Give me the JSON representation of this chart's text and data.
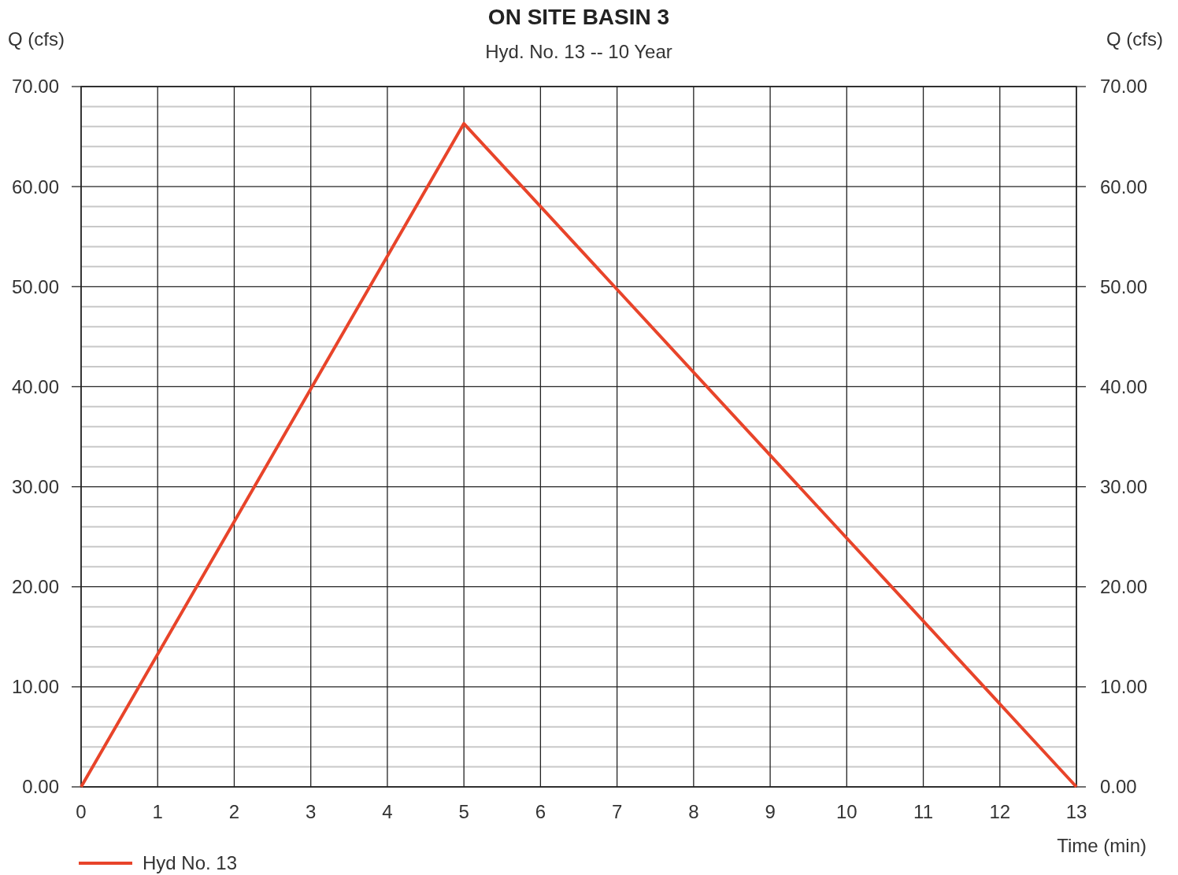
{
  "chart_data": {
    "type": "line",
    "title": "ON SITE BASIN 3",
    "subtitle": "Hyd. No. 13 -- 10 Year",
    "xlabel": "Time (min)",
    "ylabel": "Q (cfs)",
    "y2label": "Q (cfs)",
    "x": [
      0,
      5,
      13
    ],
    "series": [
      {
        "name": "Hyd No. 13",
        "color": "#e8442a",
        "values": [
          0,
          66.3,
          0
        ]
      }
    ],
    "xlim": [
      0,
      13
    ],
    "xticks": [
      0,
      1,
      2,
      3,
      4,
      5,
      6,
      7,
      8,
      9,
      10,
      11,
      12,
      13
    ],
    "ylim": [
      0,
      70
    ],
    "yticks": [
      {
        "value": 0,
        "label": "0.00"
      },
      {
        "value": 2,
        "label": null
      },
      {
        "value": 4,
        "label": null
      },
      {
        "value": 6,
        "label": null
      },
      {
        "value": 8,
        "label": null
      },
      {
        "value": 10,
        "label": "10.00"
      },
      {
        "value": 12,
        "label": null
      },
      {
        "value": 14,
        "label": null
      },
      {
        "value": 16,
        "label": null
      },
      {
        "value": 18,
        "label": null
      },
      {
        "value": 20,
        "label": "20.00"
      },
      {
        "value": 22,
        "label": null
      },
      {
        "value": 24,
        "label": null
      },
      {
        "value": 26,
        "label": null
      },
      {
        "value": 28,
        "label": null
      },
      {
        "value": 30,
        "label": "30.00"
      },
      {
        "value": 32,
        "label": null
      },
      {
        "value": 34,
        "label": null
      },
      {
        "value": 36,
        "label": null
      },
      {
        "value": 38,
        "label": null
      },
      {
        "value": 40,
        "label": "40.00"
      },
      {
        "value": 42,
        "label": null
      },
      {
        "value": 44,
        "label": null
      },
      {
        "value": 46,
        "label": null
      },
      {
        "value": 48,
        "label": null
      },
      {
        "value": 50,
        "label": "50.00"
      },
      {
        "value": 52,
        "label": null
      },
      {
        "value": 54,
        "label": null
      },
      {
        "value": 56,
        "label": null
      },
      {
        "value": 58,
        "label": null
      },
      {
        "value": 60,
        "label": "60.00"
      },
      {
        "value": 62,
        "label": null
      },
      {
        "value": 64,
        "label": null
      },
      {
        "value": 66,
        "label": null
      },
      {
        "value": 68,
        "label": null
      },
      {
        "value": 70,
        "label": "70.00"
      }
    ],
    "y2lim": [
      0,
      70
    ],
    "y2ticks": [
      {
        "value": 0,
        "label": "0.00"
      },
      {
        "value": 10,
        "label": "10.00"
      },
      {
        "value": 20,
        "label": "20.00"
      },
      {
        "value": 30,
        "label": "30.00"
      },
      {
        "value": 40,
        "label": "40.00"
      },
      {
        "value": 50,
        "label": "50.00"
      },
      {
        "value": 60,
        "label": "60.00"
      },
      {
        "value": 70,
        "label": "70.00"
      }
    ],
    "grid": true,
    "legend": "bottom left",
    "marker": "none",
    "line_style": "solid"
  }
}
